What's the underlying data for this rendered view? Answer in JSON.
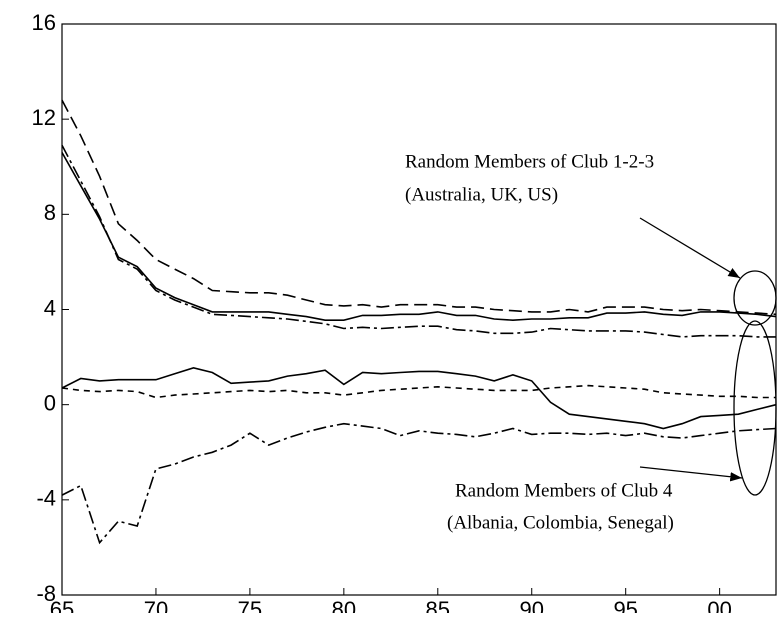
{
  "chart_data": {
    "type": "line",
    "x": [
      1965,
      1966,
      1967,
      1968,
      1969,
      1970,
      1971,
      1972,
      1973,
      1974,
      1975,
      1976,
      1977,
      1978,
      1979,
      1980,
      1981,
      1982,
      1983,
      1984,
      1985,
      1986,
      1987,
      1988,
      1989,
      1990,
      1991,
      1992,
      1993,
      1994,
      1995,
      1996,
      1997,
      1998,
      1999,
      2000,
      2001,
      2002,
      2003
    ],
    "series": [
      {
        "color": "#000000",
        "dash": "long-dash",
        "values": [
          12.8,
          11.3,
          9.6,
          7.6,
          6.9,
          6.1,
          5.7,
          5.3,
          4.8,
          4.75,
          4.7,
          4.7,
          4.6,
          4.4,
          4.2,
          4.15,
          4.2,
          4.1,
          4.2,
          4.2,
          4.2,
          4.1,
          4.1,
          4.0,
          3.95,
          3.9,
          3.9,
          4.0,
          3.9,
          4.1,
          4.1,
          4.1,
          4.0,
          3.95,
          4.0,
          3.95,
          3.9,
          3.85,
          3.8
        ]
      },
      {
        "color": "#000000",
        "dash": "solid",
        "values": [
          10.6,
          9.2,
          7.8,
          6.2,
          5.8,
          4.9,
          4.5,
          4.2,
          3.9,
          3.9,
          3.9,
          3.9,
          3.8,
          3.7,
          3.55,
          3.55,
          3.75,
          3.75,
          3.8,
          3.8,
          3.9,
          3.75,
          3.75,
          3.6,
          3.55,
          3.6,
          3.6,
          3.65,
          3.65,
          3.85,
          3.85,
          3.9,
          3.8,
          3.75,
          3.9,
          3.9,
          3.85,
          3.8,
          3.7
        ]
      },
      {
        "color": "#000000",
        "dash": "dash-dot",
        "values": [
          10.9,
          9.4,
          7.9,
          6.1,
          5.7,
          4.8,
          4.4,
          4.1,
          3.8,
          3.75,
          3.7,
          3.65,
          3.6,
          3.5,
          3.4,
          3.2,
          3.25,
          3.2,
          3.25,
          3.3,
          3.3,
          3.15,
          3.1,
          3.0,
          3.0,
          3.05,
          3.2,
          3.15,
          3.1,
          3.1,
          3.1,
          3.05,
          2.95,
          2.85,
          2.9,
          2.9,
          2.9,
          2.85,
          2.85
        ]
      },
      {
        "color": "#000000",
        "dash": "solid",
        "values": [
          0.7,
          1.1,
          1.0,
          1.05,
          1.05,
          1.05,
          1.3,
          1.55,
          1.35,
          0.9,
          0.95,
          1.0,
          1.2,
          1.3,
          1.45,
          0.85,
          1.35,
          1.3,
          1.35,
          1.4,
          1.4,
          1.3,
          1.2,
          1.0,
          1.25,
          1.0,
          0.1,
          -0.4,
          -0.5,
          -0.6,
          -0.7,
          -0.8,
          -1.0,
          -0.8,
          -0.5,
          -0.45,
          -0.4,
          -0.2,
          0.0
        ]
      },
      {
        "color": "#000000",
        "dash": "short-dash",
        "values": [
          0.7,
          0.6,
          0.55,
          0.6,
          0.55,
          0.3,
          0.4,
          0.45,
          0.5,
          0.55,
          0.6,
          0.55,
          0.6,
          0.5,
          0.5,
          0.4,
          0.5,
          0.6,
          0.65,
          0.7,
          0.75,
          0.7,
          0.65,
          0.6,
          0.6,
          0.6,
          0.7,
          0.75,
          0.8,
          0.75,
          0.7,
          0.65,
          0.5,
          0.45,
          0.4,
          0.35,
          0.35,
          0.3,
          0.3
        ]
      },
      {
        "color": "#000000",
        "dash": "dash-dot",
        "values": [
          -3.8,
          -3.4,
          -5.8,
          -4.9,
          -5.1,
          -2.7,
          -2.5,
          -2.2,
          -2.0,
          -1.7,
          -1.2,
          -1.7,
          -1.4,
          -1.15,
          -0.95,
          -0.8,
          -0.9,
          -1.0,
          -1.3,
          -1.1,
          -1.2,
          -1.25,
          -1.35,
          -1.2,
          -1.0,
          -1.25,
          -1.2,
          -1.2,
          -1.25,
          -1.2,
          -1.3,
          -1.2,
          -1.35,
          -1.4,
          -1.3,
          -1.2,
          -1.1,
          -1.05,
          -1.0
        ]
      }
    ],
    "xlim": [
      1965,
      2003
    ],
    "xticks": [
      {
        "value": 1965,
        "label": "65"
      },
      {
        "value": 1970,
        "label": "70"
      },
      {
        "value": 1975,
        "label": "75"
      },
      {
        "value": 1980,
        "label": "80"
      },
      {
        "value": 1985,
        "label": "85"
      },
      {
        "value": 1990,
        "label": "90"
      },
      {
        "value": 1995,
        "label": "95"
      },
      {
        "value": 2000,
        "label": "00"
      }
    ],
    "ylim": [
      -8,
      16
    ],
    "yticks": [
      -8,
      -4,
      0,
      4,
      8,
      12,
      16
    ],
    "annotations": [
      {
        "lines": [
          "Random Members of Club 1-2-3",
          "(Australia, UK, US)"
        ]
      },
      {
        "lines": [
          "Random Members of Club 4",
          "(Albania, Colombia, Senegal)"
        ]
      }
    ]
  }
}
